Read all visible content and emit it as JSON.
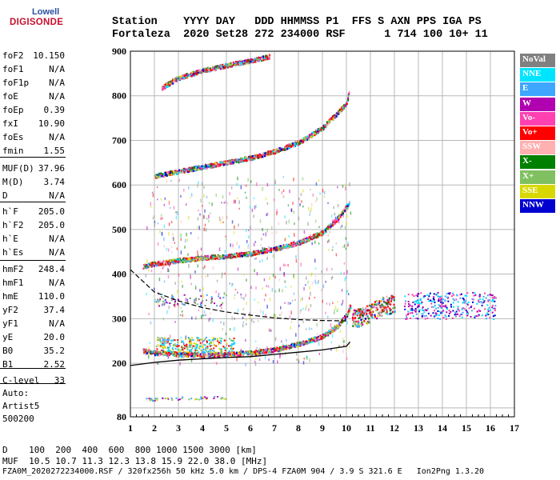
{
  "logo": {
    "top": "Lowell",
    "main": "DIGISONDE"
  },
  "header": {
    "row1": "Station    YYYY DAY   DDD HHMMSS P1  FFS S AXN PPS IGA PS",
    "row2": "Fortaleza  2020 Set28 272 234000 RSF      1 714 100 10+ 11"
  },
  "params": [
    {
      "label": "foF2",
      "value": "10.150"
    },
    {
      "label": "foF1",
      "value": "N/A"
    },
    {
      "label": "foF1p",
      "value": "N/A"
    },
    {
      "label": "foE",
      "value": "N/A"
    },
    {
      "label": "foEp",
      "value": "0.39"
    },
    {
      "label": "fxI",
      "value": "10.90"
    },
    {
      "label": "foEs",
      "value": "N/A"
    },
    {
      "label": "fmin",
      "value": "1.55"
    },
    {
      "label": "MUF(D)",
      "value": "37.96"
    },
    {
      "label": "M(D)",
      "value": "3.74"
    },
    {
      "label": "D",
      "value": "N/A"
    },
    {
      "label": "h`F",
      "value": "205.0"
    },
    {
      "label": "h`F2",
      "value": "205.0"
    },
    {
      "label": "h`E",
      "value": "N/A"
    },
    {
      "label": "h`Es",
      "value": "N/A"
    },
    {
      "label": "hmF2",
      "value": "248.4"
    },
    {
      "label": "hmF1",
      "value": "N/A"
    },
    {
      "label": "hmE",
      "value": "110.0"
    },
    {
      "label": "yF2",
      "value": "37.4"
    },
    {
      "label": "yF1",
      "value": "N/A"
    },
    {
      "label": "yE",
      "value": "20.0"
    },
    {
      "label": "B0",
      "value": "35.2"
    },
    {
      "label": "B1",
      "value": "2.52"
    },
    {
      "label": "C-level",
      "value": "33"
    }
  ],
  "auto": {
    "line1": "Auto:",
    "line2": "Artist5",
    "line3": "500200"
  },
  "legend": [
    {
      "label": "NoVal",
      "color": "#808080"
    },
    {
      "label": "NNE",
      "color": "#00e5ff"
    },
    {
      "label": "E",
      "color": "#3ea6ff"
    },
    {
      "label": "W",
      "color": "#b000b0"
    },
    {
      "label": "Vo-",
      "color": "#ff40b0"
    },
    {
      "label": "Vo+",
      "color": "#ff0000"
    },
    {
      "label": "SSW",
      "color": "#ffb0b0"
    },
    {
      "label": "X-",
      "color": "#008000"
    },
    {
      "label": "X+",
      "color": "#80c060"
    },
    {
      "label": "SSE",
      "color": "#d8d800"
    },
    {
      "label": "NNW",
      "color": "#0000d0"
    }
  ],
  "footer": {
    "line1": "D    100  200  400  600  800 1000 1500 3000 [km]",
    "line2": "MUF  10.5 10.7 11.3 12.3 13.8 15.9 22.0 38.0 [MHz]",
    "line3": "FZA0M_2020272234000.RSF / 320fx256h 50 kHz 5.0 km / DPS-4 FZA0M 904 / 3.9 S 321.6 E   Ion2Png 1.3.20"
  },
  "chart_data": {
    "type": "scatter",
    "xlim": [
      1,
      17
    ],
    "ylim": [
      80,
      900
    ],
    "x_ticks": [
      1,
      2,
      3,
      4,
      5,
      6,
      7,
      8,
      9,
      10,
      11,
      12,
      13,
      14,
      15,
      16,
      17
    ],
    "y_ticks": [
      80,
      100,
      200,
      300,
      400,
      500,
      600,
      700,
      800,
      900
    ],
    "y_tick_labels": [
      80,
      200,
      300,
      400,
      500,
      600,
      700,
      800,
      900
    ],
    "traces": [
      {
        "name": "F2 O-trace",
        "color": "#ff0000",
        "points": [
          [
            1.5,
            230
          ],
          [
            2,
            225
          ],
          [
            3,
            222
          ],
          [
            4,
            220
          ],
          [
            5,
            222
          ],
          [
            6,
            225
          ],
          [
            7,
            232
          ],
          [
            8,
            245
          ],
          [
            9,
            262
          ],
          [
            9.6,
            285
          ],
          [
            10,
            310
          ],
          [
            10.15,
            330
          ]
        ]
      },
      {
        "name": "F2 2nd hop",
        "color": "#ff0000",
        "points": [
          [
            1.5,
            418
          ],
          [
            2,
            425
          ],
          [
            3,
            432
          ],
          [
            4,
            438
          ],
          [
            5,
            442
          ],
          [
            6,
            448
          ],
          [
            7,
            458
          ],
          [
            8,
            472
          ],
          [
            9,
            495
          ],
          [
            9.6,
            525
          ],
          [
            10.1,
            560
          ]
        ]
      },
      {
        "name": "F2 3rd hop",
        "color": "#ff0000",
        "points": [
          [
            2,
            622
          ],
          [
            3,
            632
          ],
          [
            4,
            642
          ],
          [
            5,
            652
          ],
          [
            6,
            662
          ],
          [
            7,
            677
          ],
          [
            8,
            697
          ],
          [
            9,
            730
          ],
          [
            10,
            785
          ],
          [
            10.1,
            815
          ]
        ]
      },
      {
        "name": "F2 4th hop",
        "color": "#ff0000",
        "points": [
          [
            2.3,
            820
          ],
          [
            3,
            842
          ],
          [
            4,
            858
          ],
          [
            5,
            870
          ],
          [
            6,
            880
          ],
          [
            6.8,
            890
          ]
        ]
      },
      {
        "name": "X cluster",
        "color": "#ff0000",
        "points": [
          [
            10.2,
            300
          ],
          [
            10.6,
            305
          ],
          [
            11,
            315
          ],
          [
            11.5,
            330
          ],
          [
            12,
            335
          ]
        ]
      }
    ],
    "profile": {
      "points": [
        [
          1,
          195
        ],
        [
          2,
          202
        ],
        [
          3,
          207
        ],
        [
          4,
          210
        ],
        [
          5,
          213
        ],
        [
          6,
          215
        ],
        [
          7,
          220
        ],
        [
          8,
          225
        ],
        [
          9,
          230
        ],
        [
          10,
          238
        ],
        [
          10.15,
          248
        ]
      ]
    },
    "muf_curve": {
      "points": [
        [
          1,
          410
        ],
        [
          2,
          360
        ],
        [
          3,
          340
        ],
        [
          4,
          325
        ],
        [
          5,
          315
        ],
        [
          6,
          308
        ],
        [
          7,
          302
        ],
        [
          8,
          298
        ],
        [
          9,
          296
        ],
        [
          10,
          295
        ]
      ]
    },
    "es_layer": {
      "points": [
        [
          1.6,
          120
        ],
        [
          2,
          122
        ],
        [
          3,
          123
        ],
        [
          4,
          124
        ],
        [
          5,
          124
        ]
      ]
    }
  }
}
